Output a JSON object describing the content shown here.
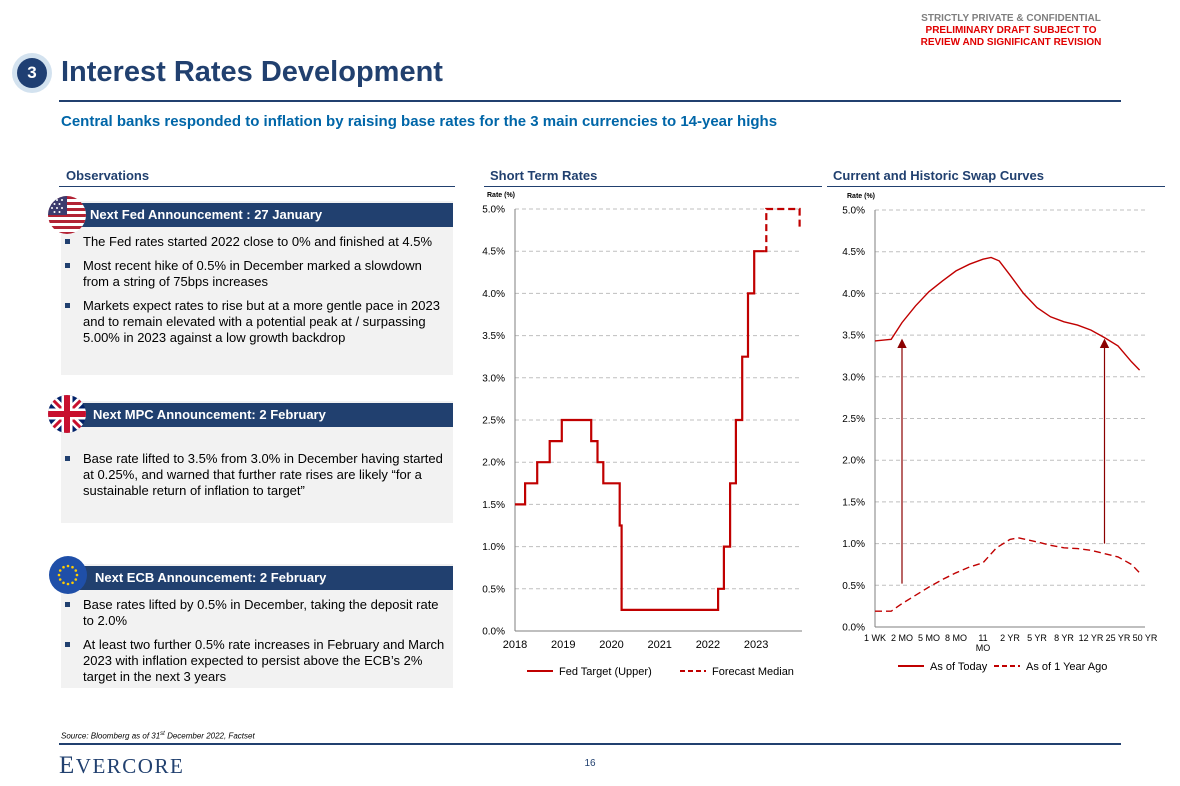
{
  "header": {
    "confidential": "STRICTLY PRIVATE & CONFIDENTIAL",
    "draft_line1": "PRELIMINARY DRAFT SUBJECT TO",
    "draft_line2": "REVIEW AND SIGNIFICANT REVISION",
    "section_number": "3",
    "title": "Interest Rates Development",
    "subtitle": "Central banks responded to inflation by raising base rates for the 3 main currencies to 14-year highs"
  },
  "observations": {
    "heading": "Observations",
    "fed": {
      "title": "Next Fed Announcement : 27 January",
      "bullets": [
        "The Fed rates started 2022 close to 0% and finished at 4.5%",
        "Most recent hike of 0.5% in December marked a slowdown from a string of 75bps increases",
        "Markets expect rates to rise but at a more gentle pace in 2023 and to remain elevated with a potential peak at / surpassing 5.00% in 2023 against a low growth backdrop"
      ]
    },
    "mpc": {
      "title": "Next MPC Announcement: 2 February",
      "bullets": [
        "Base rate lifted to 3.5% from 3.0% in December having started at 0.25%, and warned that further rate rises are likely “for a sustainable return of inflation to target”"
      ]
    },
    "ecb": {
      "title": "Next ECB Announcement: 2 February",
      "bullets": [
        "Base rates lifted by 0.5% in December, taking the deposit rate to 2.0%",
        "At least two further 0.5% rate increases in February and March 2023 with inflation expected to persist above the ECB’s 2% target in the next 3 years"
      ]
    }
  },
  "chart_data": [
    {
      "type": "line",
      "title": "Short Term Rates",
      "ylabel": "Rate (%)",
      "ylim": [
        0,
        5
      ],
      "xlim": [
        2018,
        2023.95
      ],
      "yticks": [
        "0.0%",
        "0.5%",
        "1.0%",
        "1.5%",
        "2.0%",
        "2.5%",
        "3.0%",
        "3.5%",
        "4.0%",
        "4.5%",
        "5.0%"
      ],
      "xticks": [
        "2018",
        "2019",
        "2020",
        "2021",
        "2022",
        "2023"
      ],
      "grid": true,
      "legend": "bottom",
      "series": [
        {
          "name": "Fed Target (Upper)",
          "style": "solid",
          "color": "#c00000",
          "points": [
            [
              2018.0,
              1.5
            ],
            [
              2018.21,
              1.5
            ],
            [
              2018.21,
              1.75
            ],
            [
              2018.46,
              1.75
            ],
            [
              2018.46,
              2.0
            ],
            [
              2018.72,
              2.0
            ],
            [
              2018.72,
              2.25
            ],
            [
              2018.97,
              2.25
            ],
            [
              2018.97,
              2.5
            ],
            [
              2019.58,
              2.5
            ],
            [
              2019.58,
              2.25
            ],
            [
              2019.71,
              2.25
            ],
            [
              2019.71,
              2.0
            ],
            [
              2019.83,
              2.0
            ],
            [
              2019.83,
              1.75
            ],
            [
              2020.17,
              1.75
            ],
            [
              2020.17,
              1.25
            ],
            [
              2020.21,
              1.25
            ],
            [
              2020.21,
              0.25
            ],
            [
              2022.21,
              0.25
            ],
            [
              2022.21,
              0.5
            ],
            [
              2022.33,
              0.5
            ],
            [
              2022.33,
              1.0
            ],
            [
              2022.46,
              1.0
            ],
            [
              2022.46,
              1.75
            ],
            [
              2022.58,
              1.75
            ],
            [
              2022.58,
              2.5
            ],
            [
              2022.71,
              2.5
            ],
            [
              2022.71,
              3.25
            ],
            [
              2022.83,
              3.25
            ],
            [
              2022.83,
              4.0
            ],
            [
              2022.96,
              4.0
            ],
            [
              2022.96,
              4.5
            ],
            [
              2023.17,
              4.5
            ]
          ]
        },
        {
          "name": "Forecast Median",
          "style": "dashed",
          "color": "#c00000",
          "points": [
            [
              2023.17,
              4.5
            ],
            [
              2023.21,
              4.5
            ],
            [
              2023.21,
              5.0
            ],
            [
              2023.9,
              5.0
            ],
            [
              2023.9,
              4.75
            ]
          ]
        }
      ]
    },
    {
      "type": "line",
      "title": "Current and Historic Swap Curves",
      "ylabel": "Rate (%)",
      "ylim": [
        0,
        5
      ],
      "yticks": [
        "0.0%",
        "0.5%",
        "1.0%",
        "1.5%",
        "2.0%",
        "2.5%",
        "3.0%",
        "3.5%",
        "4.0%",
        "4.5%",
        "5.0%"
      ],
      "categories": [
        "1 WK",
        "2 MO",
        "5 MO",
        "8 MO",
        "11 MO",
        "2 YR",
        "5 YR",
        "8 YR",
        "12 YR",
        "25 YR",
        "50 YR"
      ],
      "grid": true,
      "legend": "bottom",
      "series": [
        {
          "name": "As of Today",
          "style": "solid",
          "color": "#c00000",
          "points": [
            [
              0,
              3.43
            ],
            [
              0.6,
              3.45
            ],
            [
              1,
              3.65
            ],
            [
              1.5,
              3.85
            ],
            [
              2,
              4.02
            ],
            [
              2.5,
              4.15
            ],
            [
              3,
              4.27
            ],
            [
              3.5,
              4.35
            ],
            [
              4,
              4.41
            ],
            [
              4.3,
              4.43
            ],
            [
              4.6,
              4.39
            ],
            [
              5,
              4.22
            ],
            [
              5.5,
              4.0
            ],
            [
              6,
              3.83
            ],
            [
              6.5,
              3.72
            ],
            [
              7,
              3.66
            ],
            [
              7.5,
              3.62
            ],
            [
              8,
              3.56
            ],
            [
              8.5,
              3.47
            ],
            [
              9,
              3.37
            ],
            [
              9.5,
              3.18
            ],
            [
              9.8,
              3.08
            ]
          ]
        },
        {
          "name": "As of 1 Year Ago",
          "style": "dashed",
          "color": "#c00000",
          "points": [
            [
              0,
              0.19
            ],
            [
              0.6,
              0.19
            ],
            [
              1,
              0.28
            ],
            [
              1.5,
              0.38
            ],
            [
              2,
              0.48
            ],
            [
              2.5,
              0.57
            ],
            [
              3,
              0.65
            ],
            [
              3.5,
              0.72
            ],
            [
              4,
              0.77
            ],
            [
              4.5,
              0.95
            ],
            [
              5,
              1.05
            ],
            [
              5.3,
              1.07
            ],
            [
              6,
              1.02
            ],
            [
              6.5,
              0.98
            ],
            [
              7,
              0.95
            ],
            [
              7.5,
              0.94
            ],
            [
              8,
              0.92
            ],
            [
              8.5,
              0.88
            ],
            [
              9,
              0.84
            ],
            [
              9.5,
              0.75
            ],
            [
              9.8,
              0.65
            ]
          ]
        }
      ],
      "arrows": [
        {
          "x": 1,
          "from": 0.52,
          "to": 3.4
        },
        {
          "x": 8.5,
          "from": 1.0,
          "to": 3.4
        }
      ]
    }
  ],
  "footer": {
    "source_prefix": "Source: Bloomberg as of 31",
    "source_sup": "st",
    "source_suffix": " December 2022, Factset",
    "logo_first": "E",
    "logo_rest": "VERCORE",
    "page_number": "16"
  }
}
